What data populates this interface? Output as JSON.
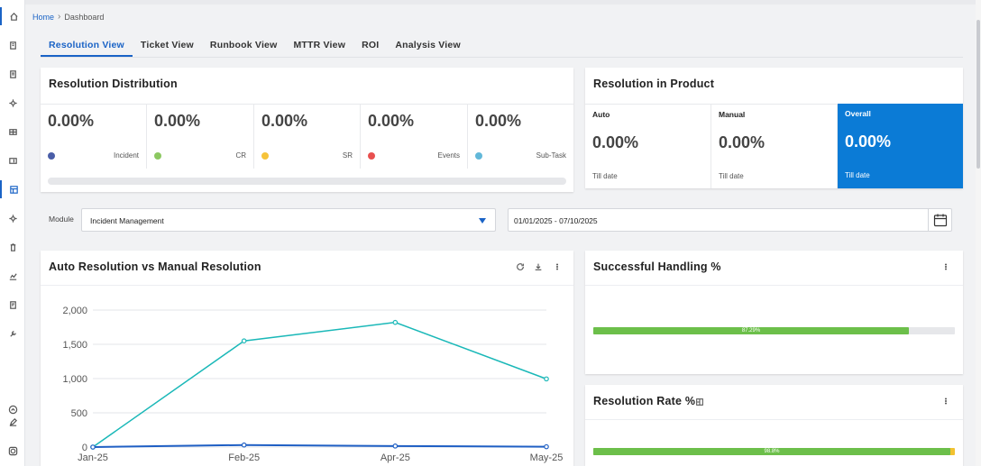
{
  "breadcrumb": {
    "home": "Home",
    "current": "Dashboard"
  },
  "tabs": [
    {
      "label": "Resolution View",
      "active": true
    },
    {
      "label": "Ticket View",
      "active": false
    },
    {
      "label": "Runbook View",
      "active": false
    },
    {
      "label": "MTTR View",
      "active": false
    },
    {
      "label": "ROI",
      "active": false
    },
    {
      "label": "Analysis View",
      "active": false
    }
  ],
  "distribution": {
    "title": "Resolution Distribution",
    "items": [
      {
        "value": "0.00%",
        "label": "Incident",
        "color": "#4a5ea8"
      },
      {
        "value": "0.00%",
        "label": "CR",
        "color": "#8cc861"
      },
      {
        "value": "0.00%",
        "label": "SR",
        "color": "#f6c33a"
      },
      {
        "value": "0.00%",
        "label": "Events",
        "color": "#e8504f"
      },
      {
        "value": "0.00%",
        "label": "Sub-Task",
        "color": "#62b8d9"
      }
    ]
  },
  "product": {
    "title": "Resolution in Product",
    "items": [
      {
        "head": "Auto",
        "value": "0.00%",
        "sub": "Till date"
      },
      {
        "head": "Manual",
        "value": "0.00%",
        "sub": "Till date"
      },
      {
        "head": "Overall",
        "value": "0.00%",
        "sub": "Till date"
      }
    ]
  },
  "filter": {
    "module_label": "Module",
    "module_value": "Incident Management",
    "date_range": "01/01/2025 - 07/10/2025"
  },
  "auto_vs_manual": {
    "title": "Auto Resolution vs Manual Resolution"
  },
  "successful_handling": {
    "title": "Successful Handling %",
    "value_label": "87.29%",
    "fraction": 0.8729
  },
  "resolution_rate": {
    "title": "Resolution Rate %",
    "value_label": "98.8%",
    "fraction": 0.988
  },
  "colors": {
    "accent": "#1a63c6",
    "overall_bg": "#0b7bd6",
    "auto_line": "#1ab8b8",
    "manual_line": "#1f5fc4",
    "bar_fill": "#6cbf4a"
  },
  "chart_data": {
    "type": "line",
    "categories": [
      "Jan-25",
      "Feb-25",
      "Apr-25",
      "May-25"
    ],
    "series": [
      {
        "values": [
          0,
          1550,
          1820,
          995
        ],
        "color": "#1ab8b8"
      },
      {
        "values": [
          0,
          30,
          15,
          5
        ],
        "color": "#1f5fc4"
      }
    ],
    "yticks": [
      "0",
      "500",
      "1,000",
      "1,500",
      "2,000"
    ],
    "ylim": [
      0,
      2000
    ],
    "grid": true
  }
}
